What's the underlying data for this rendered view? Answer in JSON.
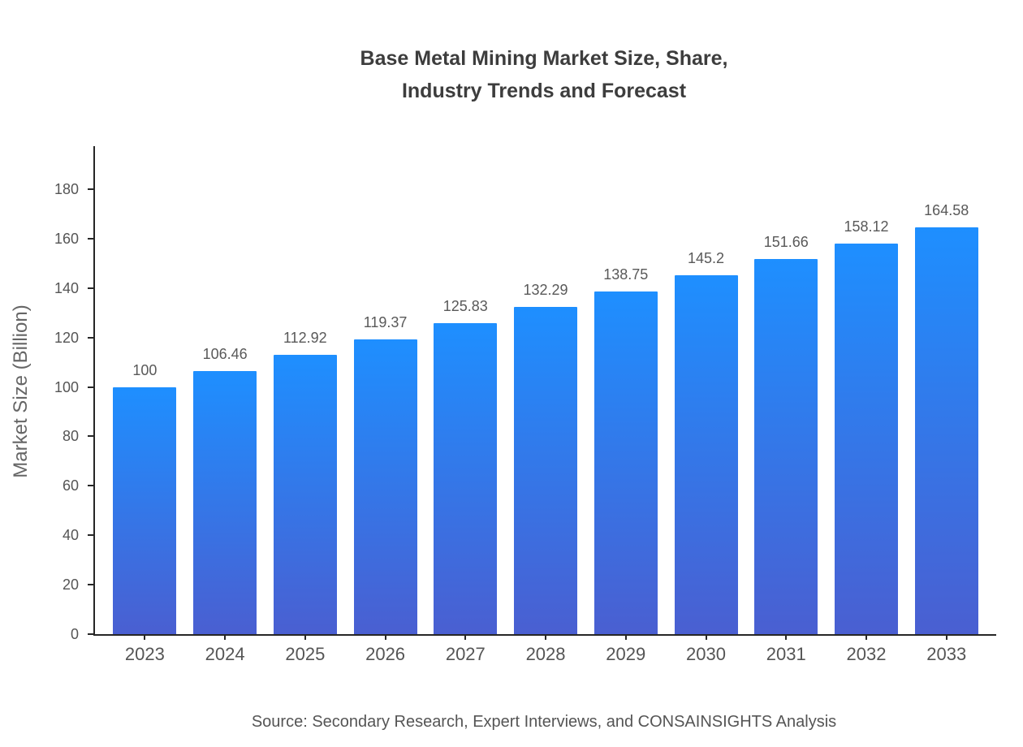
{
  "title": {
    "line1": "Base Metal Mining Market Size, Share,",
    "line2": "Industry Trends and Forecast"
  },
  "source": "Source: Secondary Research, Expert Interviews, and CONSAINSIGHTS Analysis",
  "chart_data": {
    "type": "bar",
    "title": "Base Metal Mining Market Size, Share, Industry Trends and Forecast",
    "categories": [
      "2023",
      "2024",
      "2025",
      "2026",
      "2027",
      "2028",
      "2029",
      "2030",
      "2031",
      "2032",
      "2033"
    ],
    "values": [
      100,
      106.46,
      112.92,
      119.37,
      125.83,
      132.29,
      138.75,
      145.2,
      151.66,
      158.12,
      164.58
    ],
    "value_labels": [
      "100",
      "106.46",
      "112.92",
      "119.37",
      "125.83",
      "132.29",
      "138.75",
      "145.2",
      "151.66",
      "158.12",
      "164.58"
    ],
    "xlabel": "",
    "ylabel": "Market Size (Billion)",
    "ylim": [
      0,
      190
    ],
    "yticks": [
      0,
      20,
      40,
      60,
      80,
      100,
      120,
      140,
      160,
      180
    ],
    "grid": false,
    "legend": false,
    "colors": {
      "bar_gradient_top": "#1E8FFF",
      "bar_gradient_bottom": "#4A5FD1",
      "axis": "#262626",
      "title_text": "#3D3D3D",
      "tick_text": "#555555",
      "value_text": "#595959"
    }
  }
}
